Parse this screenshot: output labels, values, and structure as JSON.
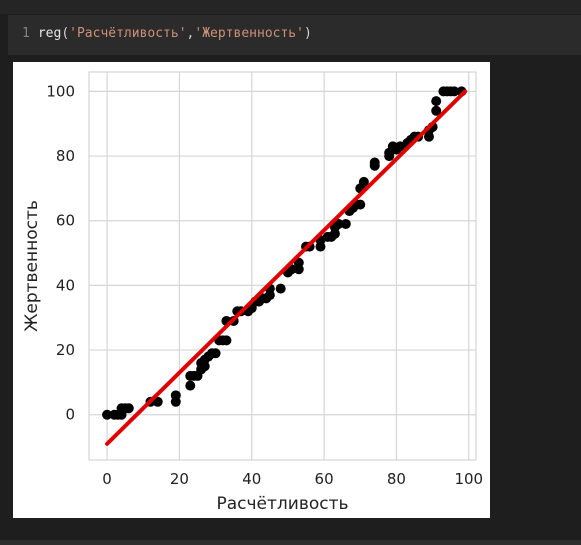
{
  "cell": {
    "line_number": "1",
    "fn_name": "reg",
    "open_paren": "(",
    "arg1": "'Расчётливость'",
    "comma": ",",
    "arg2": "'Жертвенность'",
    "close_paren": ")"
  },
  "chart_data": {
    "type": "scatter",
    "xlabel": "Расчётливость",
    "ylabel": "Жертвенность",
    "xlim": [
      -5,
      102
    ],
    "ylim": [
      -14,
      106
    ],
    "xticks": [
      0,
      20,
      40,
      60,
      80,
      100
    ],
    "yticks": [
      0,
      20,
      40,
      60,
      80,
      100
    ],
    "grid": true,
    "point_color": "#000000",
    "fit_color": "#e00000",
    "fit_line": {
      "x": [
        0,
        99
      ],
      "y": [
        -9,
        100
      ]
    },
    "points": [
      [
        0,
        0
      ],
      [
        2,
        0
      ],
      [
        3,
        0
      ],
      [
        4,
        2
      ],
      [
        4,
        0
      ],
      [
        5,
        2
      ],
      [
        6,
        2
      ],
      [
        12,
        4
      ],
      [
        14,
        4
      ],
      [
        19,
        4
      ],
      [
        19,
        6
      ],
      [
        23,
        9
      ],
      [
        23,
        12
      ],
      [
        24,
        12
      ],
      [
        25,
        12
      ],
      [
        26,
        14
      ],
      [
        26,
        16
      ],
      [
        27,
        15
      ],
      [
        27,
        17
      ],
      [
        28,
        18
      ],
      [
        29,
        19
      ],
      [
        30,
        19
      ],
      [
        31,
        23
      ],
      [
        32,
        23
      ],
      [
        33,
        23
      ],
      [
        33,
        29
      ],
      [
        35,
        29
      ],
      [
        36,
        32
      ],
      [
        37,
        32
      ],
      [
        39,
        32
      ],
      [
        40,
        33
      ],
      [
        41,
        35
      ],
      [
        42,
        35
      ],
      [
        43,
        36
      ],
      [
        44,
        36
      ],
      [
        45,
        37
      ],
      [
        45,
        39
      ],
      [
        48,
        39
      ],
      [
        50,
        44
      ],
      [
        51,
        45
      ],
      [
        53,
        45
      ],
      [
        53,
        47
      ],
      [
        55,
        52
      ],
      [
        56,
        52
      ],
      [
        59,
        52
      ],
      [
        59,
        54
      ],
      [
        61,
        55
      ],
      [
        62,
        55
      ],
      [
        63,
        56
      ],
      [
        63,
        58
      ],
      [
        64,
        59
      ],
      [
        66,
        59
      ],
      [
        67,
        63
      ],
      [
        68,
        64
      ],
      [
        69,
        65
      ],
      [
        70,
        65
      ],
      [
        70,
        70
      ],
      [
        71,
        72
      ],
      [
        74,
        77
      ],
      [
        74,
        78
      ],
      [
        78,
        80
      ],
      [
        78,
        81
      ],
      [
        79,
        82
      ],
      [
        79,
        83
      ],
      [
        80,
        82
      ],
      [
        81,
        83
      ],
      [
        83,
        84
      ],
      [
        84,
        85
      ],
      [
        85,
        86
      ],
      [
        86,
        86
      ],
      [
        89,
        86
      ],
      [
        89,
        88
      ],
      [
        90,
        89
      ],
      [
        91,
        94
      ],
      [
        91,
        97
      ],
      [
        93,
        100
      ],
      [
        94,
        100
      ],
      [
        95,
        100
      ],
      [
        96,
        100
      ],
      [
        98,
        100
      ]
    ]
  }
}
